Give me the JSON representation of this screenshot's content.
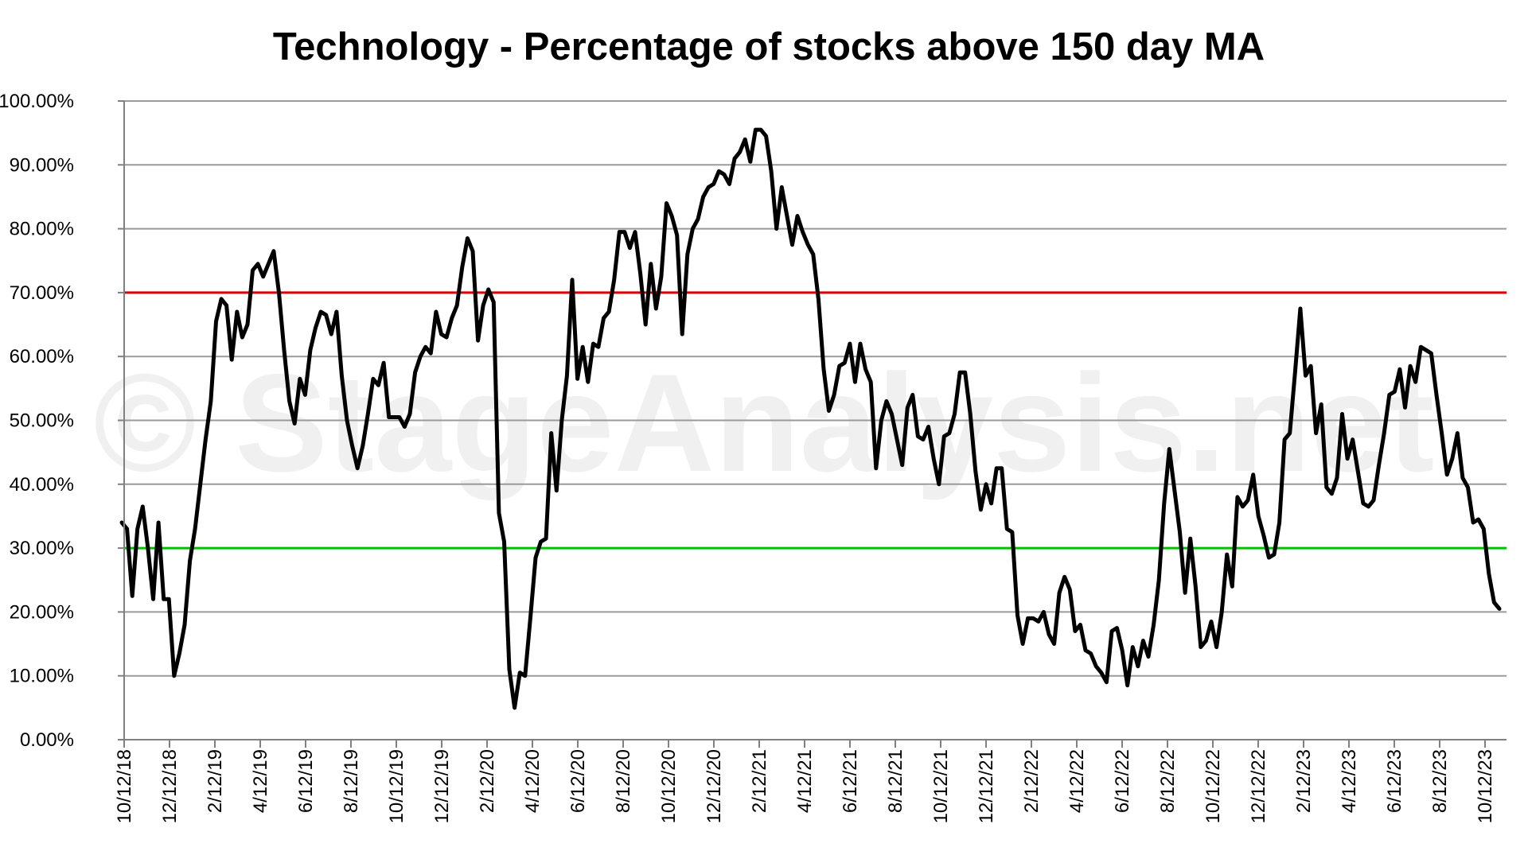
{
  "chart_data": {
    "type": "line",
    "title": "Technology - Percentage of stocks above 150 day MA",
    "watermark": "© StageAnalysis.net",
    "xlabel": "",
    "ylabel": "",
    "ylim": [
      0,
      100
    ],
    "y_ticks": [
      "0.00%",
      "10.00%",
      "20.00%",
      "30.00%",
      "40.00%",
      "50.00%",
      "60.00%",
      "70.00%",
      "80.00%",
      "90.00%",
      "100.00%"
    ],
    "x_ticks": [
      "10/12/18",
      "12/12/18",
      "2/12/19",
      "4/12/19",
      "6/12/19",
      "8/12/19",
      "10/12/19",
      "12/12/19",
      "2/12/20",
      "4/12/20",
      "6/12/20",
      "8/12/20",
      "10/12/20",
      "12/12/20",
      "2/12/21",
      "4/12/21",
      "6/12/21",
      "8/12/21",
      "10/12/21",
      "12/12/21",
      "2/12/22",
      "4/12/22",
      "6/12/22",
      "8/12/22",
      "10/12/22",
      "12/12/22",
      "2/12/23",
      "4/12/23",
      "6/12/23",
      "8/12/23",
      "10/12/23"
    ],
    "grid": true,
    "reference_lines": [
      {
        "value": 70,
        "color": "#e00000"
      },
      {
        "value": 30,
        "color": "#00c000"
      }
    ],
    "series_color": "#000000",
    "values": [
      34.0,
      33.0,
      22.5,
      33.0,
      36.5,
      30.0,
      22.0,
      34.0,
      22.0,
      22.0,
      10.0,
      13.5,
      18.0,
      28.0,
      33.0,
      40.0,
      47.0,
      53.0,
      65.5,
      69.0,
      68.0,
      59.5,
      67.0,
      63.0,
      65.0,
      73.5,
      74.5,
      72.5,
      74.5,
      76.5,
      70.0,
      61.0,
      53.0,
      49.5,
      56.5,
      54.0,
      61.0,
      64.5,
      67.0,
      66.5,
      63.5,
      67.0,
      57.0,
      50.0,
      46.0,
      42.5,
      46.0,
      51.0,
      56.5,
      55.5,
      59.0,
      50.5,
      50.5,
      50.5,
      49.0,
      51.0,
      57.5,
      60.0,
      61.5,
      60.5,
      67.0,
      63.5,
      63.0,
      66.0,
      68.0,
      74.0,
      78.5,
      76.5,
      62.5,
      68.0,
      70.5,
      68.5,
      35.5,
      31.0,
      11.0,
      5.0,
      10.5,
      10.0,
      19.0,
      28.5,
      31.0,
      31.5,
      48.0,
      39.0,
      50.0,
      57.0,
      72.0,
      56.5,
      61.5,
      56.0,
      62.0,
      61.5,
      66.0,
      67.0,
      72.0,
      79.5,
      79.5,
      77.0,
      79.5,
      73.0,
      65.0,
      74.5,
      67.5,
      72.5,
      84.0,
      82.0,
      79.0,
      63.5,
      76.0,
      80.0,
      81.5,
      85.0,
      86.5,
      87.0,
      89.0,
      88.5,
      87.0,
      91.0,
      92.0,
      94.0,
      90.5,
      95.5,
      95.5,
      94.5,
      89.0,
      80.0,
      86.5,
      82.0,
      77.5,
      82.0,
      79.5,
      77.5,
      76.0,
      69.0,
      58.0,
      51.5,
      54.0,
      58.5,
      59.0,
      62.0,
      56.0,
      62.0,
      58.0,
      56.0,
      42.5,
      50.0,
      53.0,
      51.0,
      47.0,
      43.0,
      52.0,
      54.0,
      47.5,
      47.0,
      49.0,
      44.0,
      40.0,
      47.5,
      48.0,
      51.0,
      57.5,
      57.5,
      51.0,
      42.0,
      36.0,
      40.0,
      37.0,
      42.5,
      42.5,
      33.0,
      32.5,
      19.5,
      15.0,
      19.0,
      19.0,
      18.5,
      20.0,
      16.5,
      15.0,
      23.0,
      25.5,
      23.5,
      17.0,
      18.0,
      14.0,
      13.5,
      11.5,
      10.5,
      9.0,
      17.0,
      17.5,
      14.0,
      8.5,
      14.5,
      11.5,
      15.5,
      13.0,
      18.0,
      25.0,
      37.0,
      45.5,
      39.0,
      32.5,
      23.0,
      31.5,
      24.0,
      14.5,
      15.5,
      18.5,
      14.5,
      20.0,
      29.0,
      24.0,
      38.0,
      36.5,
      37.5,
      41.5,
      35.0,
      32.0,
      28.5,
      29.0,
      34.0,
      47.0,
      48.0,
      57.5,
      67.5,
      57.0,
      58.5,
      48.0,
      52.5,
      39.5,
      38.5,
      41.0,
      51.0,
      44.0,
      47.0,
      42.0,
      37.0,
      36.5,
      37.5,
      43.0,
      48.0,
      54.0,
      54.5,
      58.0,
      52.0,
      58.5,
      56.0,
      61.5,
      61.0,
      60.5,
      54.0,
      48.0,
      41.5,
      44.0,
      48.0,
      41.0,
      39.5,
      34.0,
      34.5,
      33.0,
      26.0,
      21.5,
      20.5
    ]
  }
}
